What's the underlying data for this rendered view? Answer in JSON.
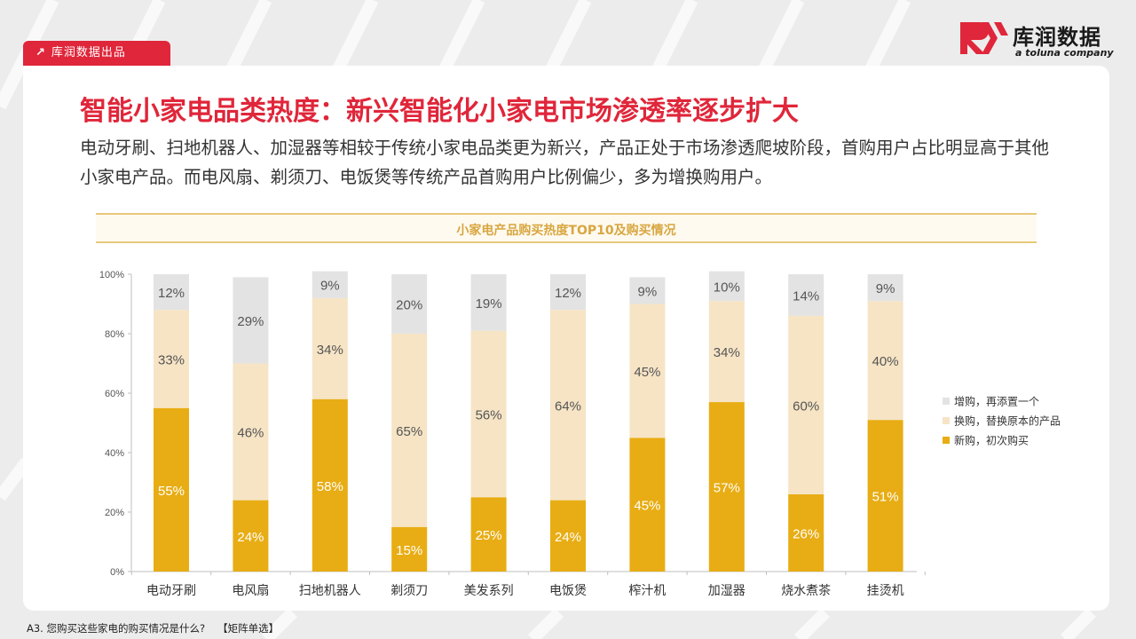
{
  "header": {
    "tag_label": "库润数据出品",
    "brand_name": "库润数据",
    "brand_sub": "a toluna company"
  },
  "title": "智能小家电品类热度：新兴智能化小家电市场渗透率逐步扩大",
  "description": "电动牙刷、扫地机器人、加湿器等相较于传统小家电品类更为新兴，产品正处于市场渗透爬坡阶段，首购用户占比明显高于其他小家电产品。而电风扇、剃须刀、电饭煲等传统产品首购用户比例偏少，多为增换购用户。",
  "footnote": {
    "question": "A3. 您购买这些家电的购买情况是什么?",
    "type": "【矩阵单选】"
  },
  "colors": {
    "accent_red": "#e0263a",
    "new_purchase": "#e8ad14",
    "replacement": "#f6e4c5",
    "additional": "#e3e3e3"
  },
  "chart_data": {
    "type": "bar",
    "stacked": true,
    "title": "小家电产品购买热度TOP10及购买情况",
    "categories": [
      "电动牙刷",
      "电风扇",
      "扫地机器人",
      "剃须刀",
      "美发系列",
      "电饭煲",
      "榨汁机",
      "加湿器",
      "烧水煮茶",
      "挂烫机"
    ],
    "ylim": [
      0,
      100
    ],
    "yticks": [
      "0%",
      "20%",
      "40%",
      "60%",
      "80%",
      "100%"
    ],
    "legend_position": "right",
    "series": [
      {
        "name": "新购，初次购买",
        "color": "#e8ad14",
        "values": [
          55,
          24,
          58,
          15,
          25,
          24,
          45,
          57,
          26,
          51
        ],
        "labels": [
          "55%",
          "24%",
          "58%",
          "15%",
          "25%",
          "24%",
          "45%",
          "57%",
          "26%",
          "51%"
        ]
      },
      {
        "name": "换购，替换原本的产品",
        "color": "#f6e4c5",
        "values": [
          33,
          46,
          34,
          65,
          56,
          64,
          45,
          34,
          60,
          40
        ],
        "labels": [
          "33%",
          "46%",
          "34%",
          "65%",
          "56%",
          "64%",
          "45%",
          "34%",
          "60%",
          "40%"
        ]
      },
      {
        "name": "增购，再添置一个",
        "color": "#e3e3e3",
        "values": [
          12,
          29,
          9,
          20,
          19,
          12,
          9,
          10,
          14,
          9
        ],
        "labels": [
          "12%",
          "29%",
          "9%",
          "20%",
          "19%",
          "12%",
          "9%",
          "10%",
          "14%",
          "9%"
        ]
      }
    ]
  }
}
